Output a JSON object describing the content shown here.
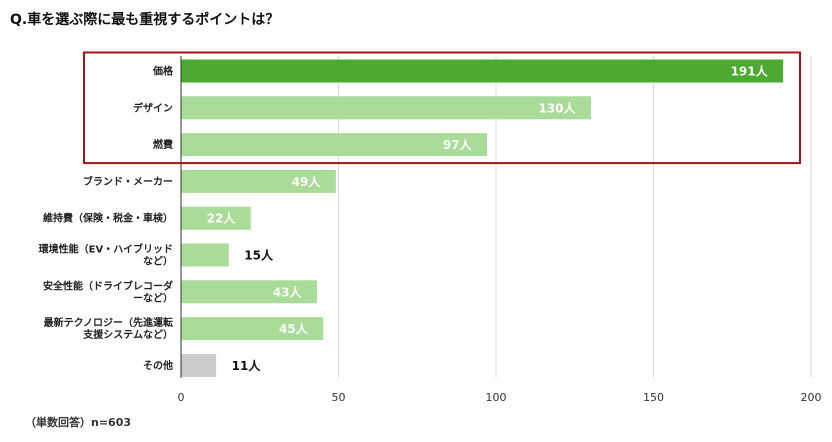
{
  "title": "Q.車を選ぶ際に最も重視するポイントは？",
  "footnote": "（単数回答）n=603",
  "colors": {
    "highlight_bar": "#4caa32",
    "normal_bar": "#a9dc98",
    "other_bar": "#cccccc",
    "highlight_box": "#a3141c",
    "grid": "#dddddd",
    "axis": "#333333"
  },
  "chart_data": {
    "type": "bar",
    "orientation": "horizontal",
    "categories": [
      [
        "価格"
      ],
      [
        "デザイン"
      ],
      [
        "燃費"
      ],
      [
        "ブランド・メーカー"
      ],
      [
        "維持費（保険・税金・車検）"
      ],
      [
        "環境性能（EV・ハイブリッド",
        "など）"
      ],
      [
        "安全性能（ドライブレコーダ",
        "ーなど）"
      ],
      [
        "最新テクノロジー（先進運転",
        "支援システムなど）"
      ],
      [
        "その他"
      ]
    ],
    "values": [
      191,
      130,
      97,
      49,
      22,
      15,
      43,
      45,
      11
    ],
    "value_labels": [
      "191人",
      "130人",
      "97人",
      "49人",
      "22人",
      "15人",
      "43人",
      "45人",
      "11人"
    ],
    "bar_styles": [
      "highlight",
      "normal",
      "normal",
      "normal",
      "normal",
      "normal",
      "normal",
      "normal",
      "other"
    ],
    "label_inside": [
      true,
      true,
      true,
      true,
      true,
      false,
      true,
      true,
      false
    ],
    "highlighted_categories": [
      0,
      1,
      2
    ],
    "xlim": [
      0,
      200
    ],
    "xticks": [
      0,
      50,
      100,
      150,
      200
    ],
    "grid": "vertical"
  }
}
